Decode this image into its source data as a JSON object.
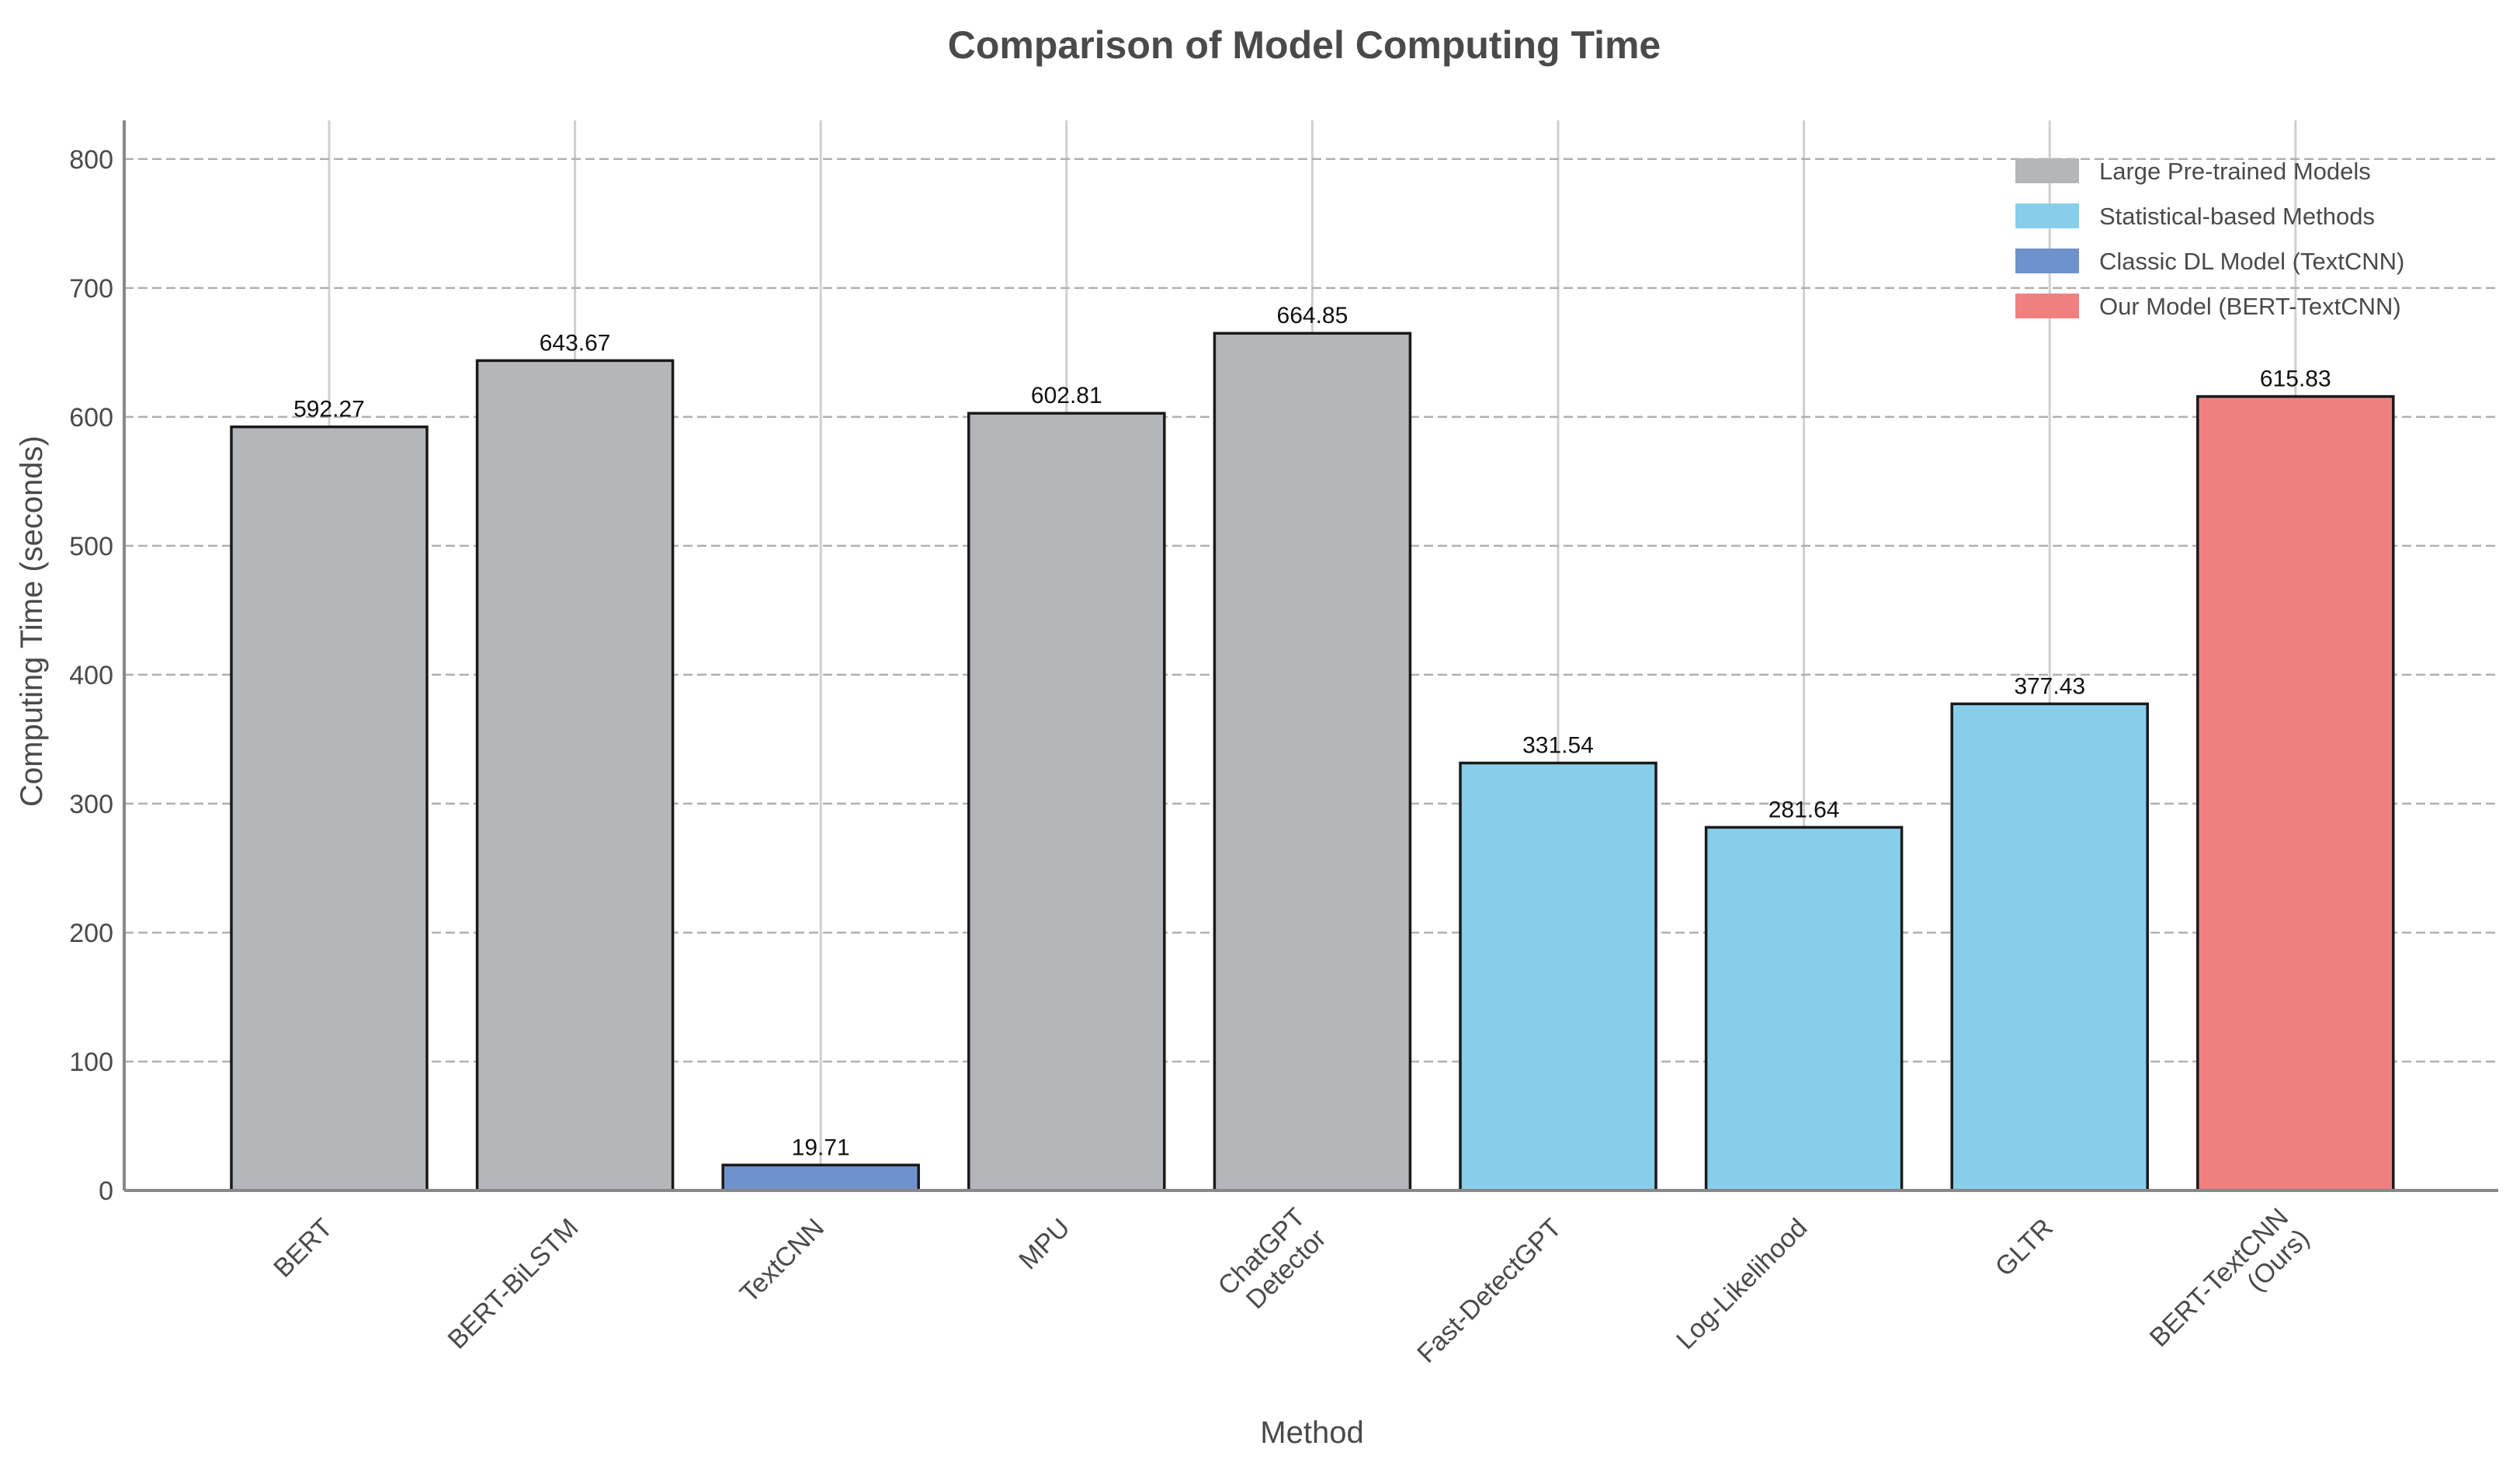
{
  "chart_data": {
    "type": "bar",
    "title": "Comparison of Model Computing Time",
    "xlabel": "Method",
    "ylabel": "Computing Time (seconds)",
    "ylim": [
      0,
      830
    ],
    "yticks": [
      0,
      100,
      200,
      300,
      400,
      500,
      600,
      700,
      800
    ],
    "grid": true,
    "legend_position": "top-right",
    "categories": [
      [
        "BERT"
      ],
      [
        "BERT-BiLSTM"
      ],
      [
        "TextCNN"
      ],
      [
        "MPU"
      ],
      [
        "ChatGPT",
        "Detector"
      ],
      [
        "Fast-DetectGPT"
      ],
      [
        "Log-Likelihood"
      ],
      [
        "GLTR"
      ],
      [
        "BERT-TextCNN",
        "(Ours)"
      ]
    ],
    "values": [
      592.27,
      643.67,
      19.71,
      602.81,
      664.85,
      331.54,
      281.64,
      377.43,
      615.83
    ],
    "value_labels": [
      "592.27",
      "643.67",
      "19.71",
      "602.81",
      "664.85",
      "331.54",
      "281.64",
      "377.43",
      "615.83"
    ],
    "groups": [
      "large",
      "large",
      "classic",
      "large",
      "large",
      "statistical",
      "statistical",
      "statistical",
      "ours"
    ],
    "legend": [
      {
        "key": "large",
        "label": "Large Pre-trained Models",
        "color": "#b5b6ba"
      },
      {
        "key": "statistical",
        "label": "Statistical-based Methods",
        "color": "#87ceeb"
      },
      {
        "key": "classic",
        "label": "Classic DL Model (TextCNN)",
        "color": "#7092cc"
      },
      {
        "key": "ours",
        "label": "Our Model (BERT-TextCNN)",
        "color": "#f08080"
      }
    ]
  }
}
